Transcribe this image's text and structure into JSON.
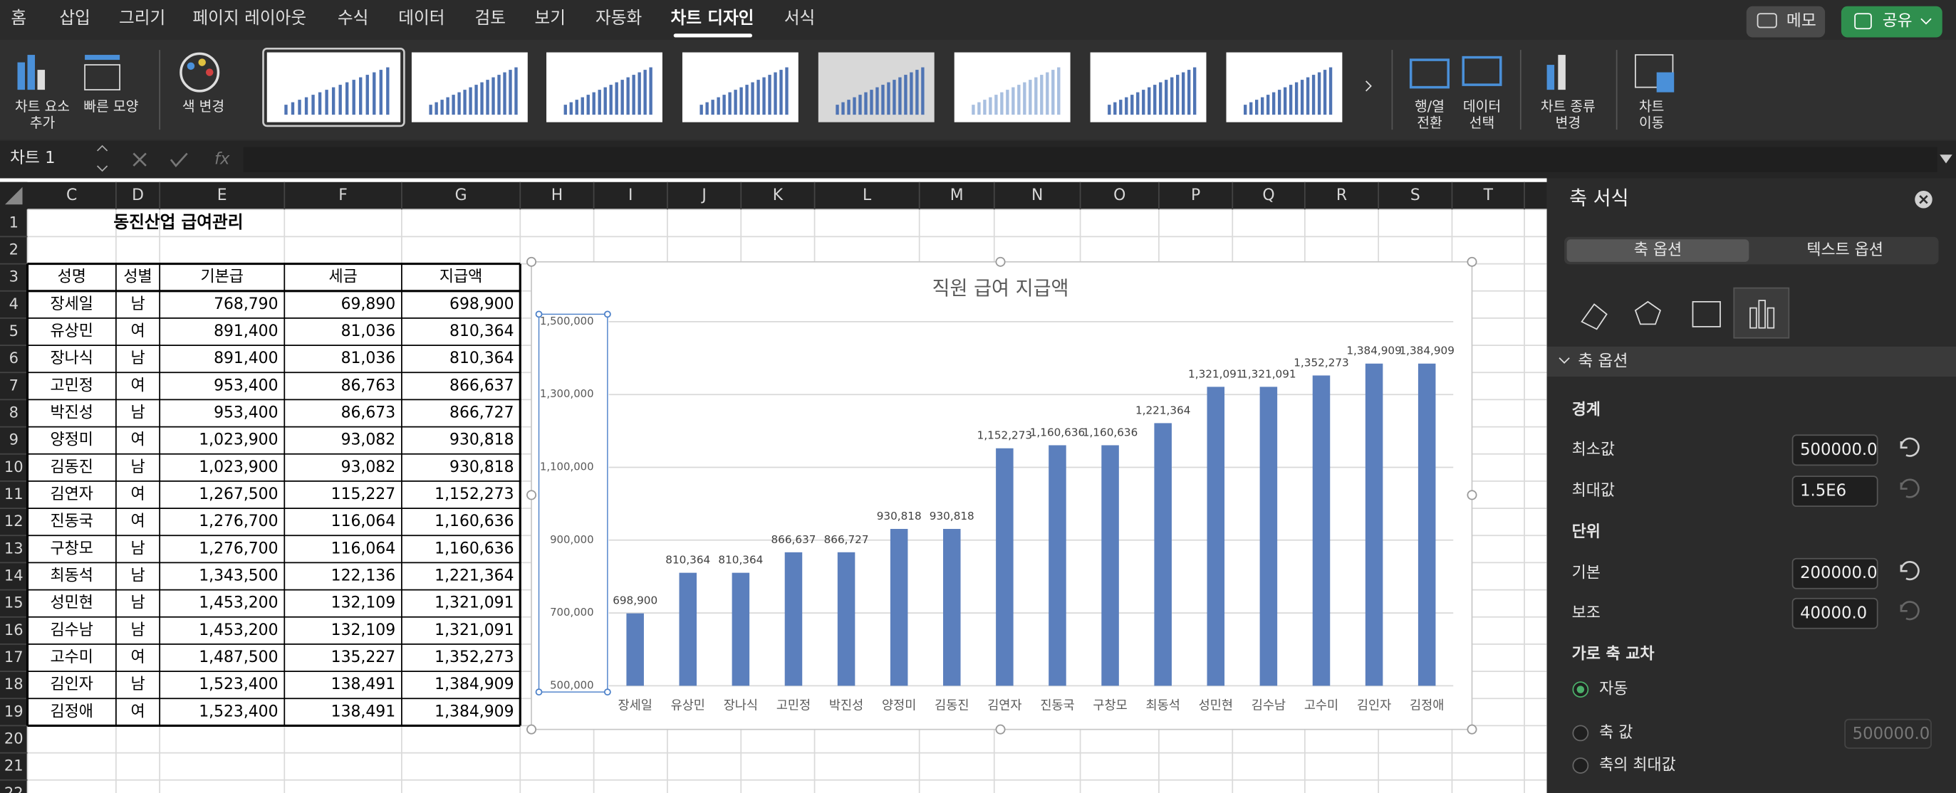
{
  "menu": {
    "tabs": [
      "홈",
      "삽입",
      "그리기",
      "페이지 레이아웃",
      "수식",
      "데이터",
      "검토",
      "보기",
      "자동화",
      "차트 디자인",
      "서식"
    ],
    "memo_button": "메모",
    "share_button": "공유"
  },
  "ribbon": {
    "buttons": [
      [
        "차트 요소",
        "추가"
      ],
      [
        "빠른 모양"
      ],
      [
        "색 변경"
      ],
      [
        "행/열",
        "전환"
      ],
      [
        "데이터",
        "선택"
      ],
      [
        "차트 종류",
        "변경"
      ],
      [
        "차트",
        "이동"
      ]
    ]
  },
  "formula_bar": {
    "name_box": "차트 1",
    "fx": "fx"
  },
  "sheet": {
    "columns": [
      "C",
      "D",
      "E",
      "F",
      "G",
      "H",
      "I",
      "J",
      "K",
      "L",
      "M",
      "N",
      "O",
      "P",
      "Q",
      "R",
      "S",
      "T"
    ],
    "row_numbers": [
      1,
      2,
      3,
      4,
      5,
      6,
      7,
      8,
      9,
      10,
      11,
      12,
      13,
      14,
      15,
      16,
      17,
      18,
      19,
      20,
      21,
      22
    ],
    "title": "동진산업 급여관리",
    "header": [
      "성명",
      "성별",
      "기본급",
      "세금",
      "지급액"
    ],
    "rows": [
      [
        "장세일",
        "남",
        "768,790",
        "69,890",
        "698,900"
      ],
      [
        "유상민",
        "여",
        "891,400",
        "81,036",
        "810,364"
      ],
      [
        "장나식",
        "남",
        "891,400",
        "81,036",
        "810,364"
      ],
      [
        "고민정",
        "여",
        "953,400",
        "86,763",
        "866,637"
      ],
      [
        "박진성",
        "남",
        "953,400",
        "86,673",
        "866,727"
      ],
      [
        "양정미",
        "여",
        "1,023,900",
        "93,082",
        "930,818"
      ],
      [
        "김동진",
        "남",
        "1,023,900",
        "93,082",
        "930,818"
      ],
      [
        "김연자",
        "여",
        "1,267,500",
        "115,227",
        "1,152,273"
      ],
      [
        "진동국",
        "여",
        "1,276,700",
        "116,064",
        "1,160,636"
      ],
      [
        "구창모",
        "남",
        "1,276,700",
        "116,064",
        "1,160,636"
      ],
      [
        "최동석",
        "남",
        "1,343,500",
        "122,136",
        "1,221,364"
      ],
      [
        "성민현",
        "남",
        "1,453,200",
        "132,109",
        "1,321,091"
      ],
      [
        "김수남",
        "남",
        "1,453,200",
        "132,109",
        "1,321,091"
      ],
      [
        "고수미",
        "여",
        "1,487,500",
        "135,227",
        "1,352,273"
      ],
      [
        "김인자",
        "남",
        "1,523,400",
        "138,491",
        "1,384,909"
      ],
      [
        "김정애",
        "여",
        "1,523,400",
        "138,491",
        "1,384,909"
      ]
    ]
  },
  "chart_data": {
    "type": "bar",
    "title": "직원 급여 지급액",
    "categories": [
      "장세일",
      "유상민",
      "장나식",
      "고민정",
      "박진성",
      "양정미",
      "김동진",
      "김연자",
      "진동국",
      "구창모",
      "최동석",
      "성민현",
      "김수남",
      "고수미",
      "김인자",
      "김정애"
    ],
    "values": [
      698900,
      810364,
      810364,
      866637,
      866727,
      930818,
      930818,
      1152273,
      1160636,
      1160636,
      1221364,
      1321091,
      1321091,
      1352273,
      1384909,
      1384909
    ],
    "value_labels": [
      "698,900",
      "810,364",
      "810,364",
      "866,637",
      "866,727",
      "930,818",
      "930,818",
      "1,152,273",
      "1,160,636",
      "1,160,636",
      "1,221,364",
      "1,321,091",
      "1,321,091",
      "1,352,273",
      "1,384,909",
      "1,384,909"
    ],
    "color": "#5b7fbd",
    "ylim": [
      500000,
      1500000
    ],
    "yticks": [
      {
        "value": 500000,
        "label": "500,000"
      },
      {
        "value": 700000,
        "label": "700,000"
      },
      {
        "value": 900000,
        "label": "900,000"
      },
      {
        "value": 1100000,
        "label": "1,100,000"
      },
      {
        "value": 1300000,
        "label": "1,300,000"
      },
      {
        "value": 1500000,
        "label": "1,500,000"
      }
    ],
    "grid": true
  },
  "pane": {
    "title": "축 서식",
    "tabs": [
      "축 옵션",
      "텍스트 옵션"
    ],
    "section": "축 옵션",
    "bounds_heading": "경계",
    "minimum": {
      "label": "최소값",
      "value": "500000.0"
    },
    "maximum": {
      "label": "최대값",
      "value": "1.5E6"
    },
    "units_heading": "단위",
    "major": {
      "label": "기본",
      "value": "200000.0"
    },
    "minor": {
      "label": "보조",
      "value": "40000.0"
    },
    "crosses_heading": "가로 축 교차",
    "crosses_options": [
      "자동",
      "축 값",
      "축의 최대값"
    ],
    "crosses_value": "500000.0"
  }
}
